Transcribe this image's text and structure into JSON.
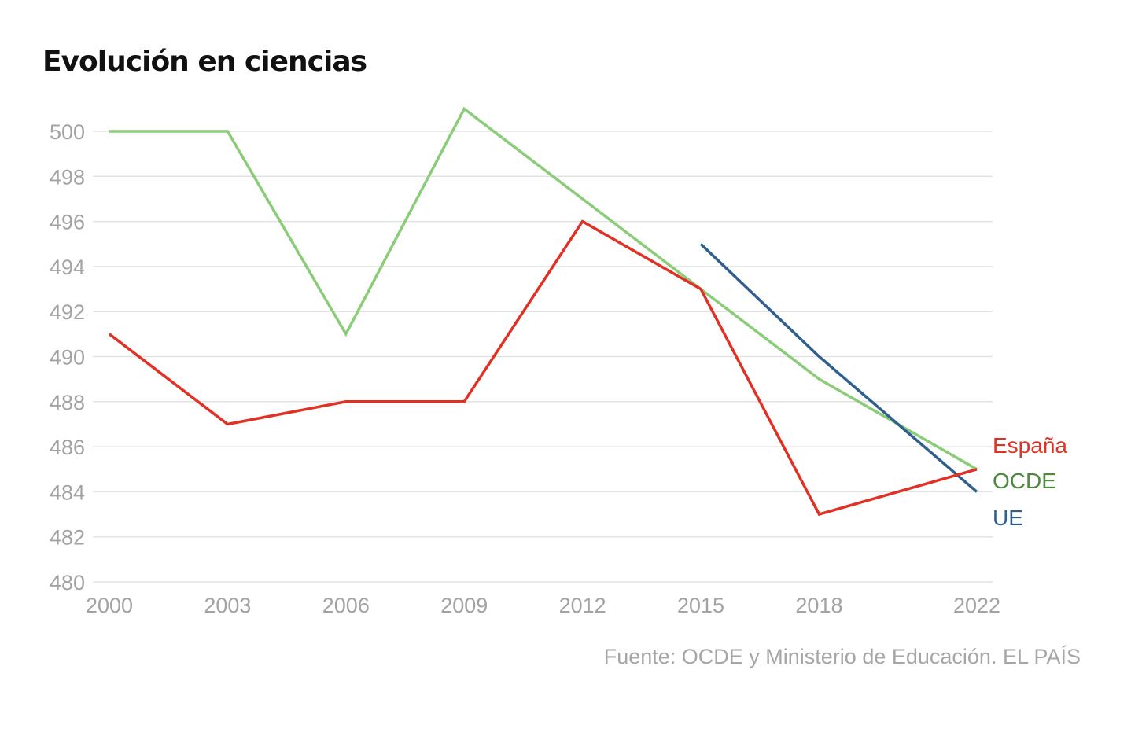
{
  "chart_data": {
    "type": "line",
    "title": "Evolución en ciencias",
    "source": "Fuente: OCDE y Ministerio de Educación. EL PAÍS",
    "x": [
      2000,
      2003,
      2006,
      2009,
      2012,
      2015,
      2018,
      2022
    ],
    "x_tick_labels": [
      "2000",
      "2003",
      "2006",
      "2009",
      "2012",
      "2015",
      "2018",
      "2022"
    ],
    "ylim": [
      480,
      500
    ],
    "y_ticks": [
      480,
      482,
      484,
      486,
      488,
      490,
      492,
      494,
      496,
      498,
      500
    ],
    "grid": true,
    "series": [
      {
        "name": "España",
        "color": "#e03124",
        "values": [
          491,
          487,
          488,
          488,
          496,
          493,
          483,
          485
        ]
      },
      {
        "name": "OCDE",
        "color": "#8bcc79",
        "label_color": "#4e8a3c",
        "values": [
          500,
          500,
          491,
          501,
          497,
          493,
          489,
          485
        ]
      },
      {
        "name": "UE",
        "color": "#2f5f8e",
        "values": [
          null,
          null,
          null,
          null,
          null,
          495,
          490,
          484
        ]
      }
    ]
  }
}
